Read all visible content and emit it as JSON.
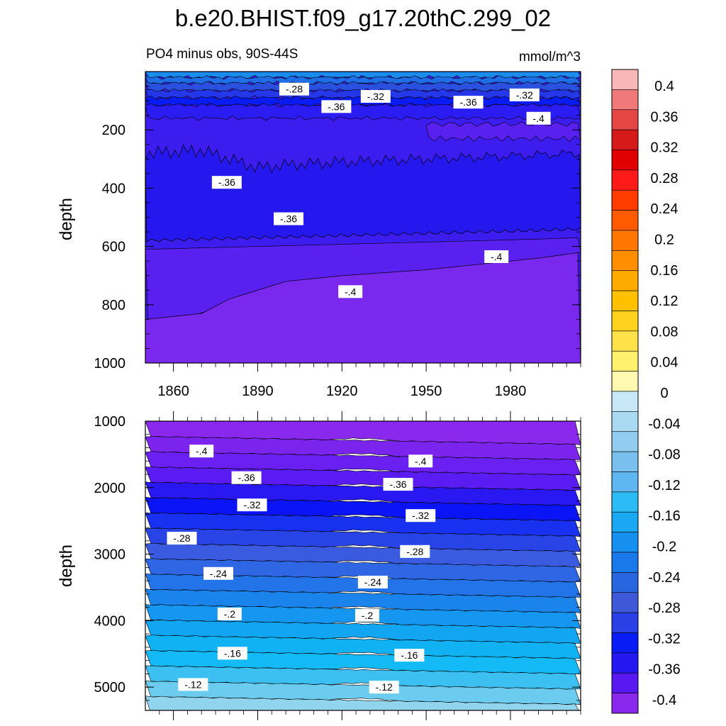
{
  "chart_data": [
    {
      "type": "heatmap",
      "title": "b.e20.BHIST.f09_g17.20thC.299_02",
      "subtitle_left": "PO4 minus obs, 90S-44S",
      "subtitle_right": "mmol/m^3",
      "ylabel": "depth",
      "xlabel": "",
      "xlim": [
        1850,
        2005
      ],
      "ylim": [
        1000,
        0
      ],
      "x_ticks": [
        1860,
        1890,
        1920,
        1950,
        1980
      ],
      "y_ticks": [
        200,
        400,
        600,
        800,
        1000
      ],
      "grid": false,
      "contour_boundaries": [
        {
          "level": -0.36,
          "x": [
            1850,
            1870,
            1880,
            1890,
            1900,
            1920,
            1950,
            1980,
            2005
          ],
          "y": [
            280,
            270,
            300,
            330,
            320,
            310,
            300,
            290,
            280
          ]
        },
        {
          "level": -0.36,
          "x": [
            1850,
            1870,
            1890,
            1910,
            1930,
            1950,
            1970,
            1990,
            2005
          ],
          "y": [
            580,
            575,
            570,
            565,
            560,
            555,
            550,
            545,
            540
          ]
        },
        {
          "level": -0.4,
          "x": [
            1850,
            1870,
            1880,
            1900,
            1920,
            1950,
            1970,
            1990,
            2005
          ],
          "y": [
            850,
            830,
            780,
            720,
            700,
            680,
            660,
            640,
            620
          ]
        }
      ],
      "contour_labels": [
        {
          "text": "-.28",
          "x": 1903,
          "y": 60
        },
        {
          "text": "-.36",
          "x": 1918,
          "y": 120
        },
        {
          "text": "-.32",
          "x": 1932,
          "y": 85
        },
        {
          "text": "-.36",
          "x": 1965,
          "y": 105
        },
        {
          "text": "-.32",
          "x": 1985,
          "y": 80
        },
        {
          "text": "-.4",
          "x": 1990,
          "y": 160
        },
        {
          "text": "-.36",
          "x": 1879,
          "y": 380
        },
        {
          "text": "-.36",
          "x": 1901,
          "y": 505
        },
        {
          "text": "-.4",
          "x": 1975,
          "y": 635
        },
        {
          "text": "-.4",
          "x": 1923,
          "y": 755
        }
      ]
    },
    {
      "type": "heatmap",
      "title": "",
      "ylabel": "depth",
      "xlabel": "",
      "xlim": [
        1850,
        2005
      ],
      "ylim": [
        5350,
        1000
      ],
      "x_ticks": [
        1860,
        1890,
        1920,
        1950,
        1980
      ],
      "x_ticks_labeled": false,
      "y_ticks": [
        1000,
        2000,
        3000,
        4000,
        5000
      ],
      "grid": false,
      "contour_levels": [
        -0.4,
        -0.36,
        -0.32,
        -0.28,
        -0.24,
        -0.2,
        -0.16,
        -0.12
      ],
      "contour_depth_start": [
        1600,
        1800,
        2200,
        2700,
        3200,
        3800,
        4400,
        5000
      ],
      "contour_depth_end": [
        1700,
        2100,
        2500,
        2900,
        3400,
        4000,
        4600,
        5100
      ],
      "contour_labels": [
        {
          "text": "-.4",
          "x": 1870,
          "y": 1450
        },
        {
          "text": "-.4",
          "x": 1948,
          "y": 1600
        },
        {
          "text": "-.36",
          "x": 1886,
          "y": 1850
        },
        {
          "text": "-.36",
          "x": 1940,
          "y": 1950
        },
        {
          "text": "-.32",
          "x": 1888,
          "y": 2260
        },
        {
          "text": "-.32",
          "x": 1948,
          "y": 2420
        },
        {
          "text": "-.28",
          "x": 1863,
          "y": 2760
        },
        {
          "text": "-.28",
          "x": 1946,
          "y": 2960
        },
        {
          "text": "-.24",
          "x": 1876,
          "y": 3290
        },
        {
          "text": "-.24",
          "x": 1931,
          "y": 3420
        },
        {
          "text": "-.2",
          "x": 1880,
          "y": 3900
        },
        {
          "text": "-.2",
          "x": 1929,
          "y": 3920
        },
        {
          "text": "-.16",
          "x": 1881,
          "y": 4490
        },
        {
          "text": "-.16",
          "x": 1944,
          "y": 4520
        },
        {
          "text": "-.12",
          "x": 1867,
          "y": 4960
        },
        {
          "text": "-.12",
          "x": 1935,
          "y": 5000
        }
      ]
    },
    {
      "type": "colorbar",
      "tick_labels": [
        "0.4",
        "0.36",
        "0.32",
        "0.28",
        "0.24",
        "0.2",
        "0.16",
        "0.12",
        "0.08",
        "0.04",
        "0",
        "-0.04",
        "-0.08",
        "-0.12",
        "-0.16",
        "-0.2",
        "-0.24",
        "-0.28",
        "-0.32",
        "-0.36",
        "-0.4"
      ],
      "tick_values": [
        0.4,
        0.36,
        0.32,
        0.28,
        0.24,
        0.2,
        0.16,
        0.12,
        0.08,
        0.04,
        0,
        -0.04,
        -0.08,
        -0.12,
        -0.16,
        -0.2,
        -0.24,
        -0.28,
        -0.32,
        -0.36,
        -0.4
      ],
      "colors": [
        "#f9b7b7",
        "#f07a7a",
        "#e64545",
        "#d61a1a",
        "#e00000",
        "#ff1a1a",
        "#ff3b00",
        "#ff5a00",
        "#ff7700",
        "#ff8f00",
        "#ffaa00",
        "#ffc000",
        "#ffd21e",
        "#ffe14a",
        "#fff06e",
        "#fffab0",
        "#c8e8f8",
        "#aadaf2",
        "#92ccee",
        "#7ac0ee",
        "#5fb6f0",
        "#2bbcf5",
        "#1aa8f5",
        "#1590f0",
        "#1a78ea",
        "#2a65e0",
        "#3f58d8",
        "#2a40e6",
        "#0a1cf6",
        "#2418f0",
        "#5a18f0",
        "#8a28ee"
      ]
    }
  ]
}
